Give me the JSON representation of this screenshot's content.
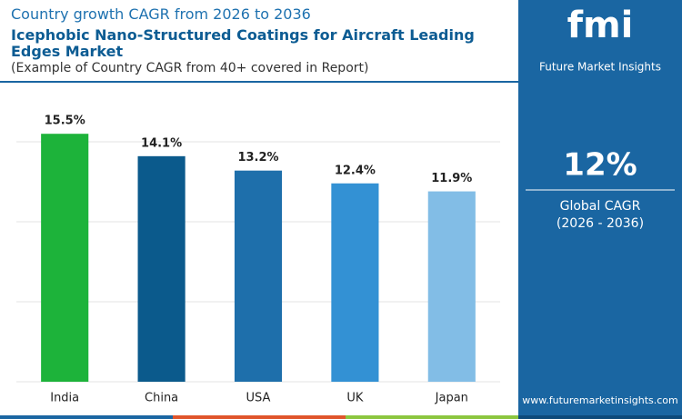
{
  "header": {
    "title": "Country growth CAGR from 2026 to 2036"
  },
  "logo": {
    "mark": "fmi",
    "name": "Future Market Insights"
  },
  "sidebar": {
    "value": "12%",
    "label": "Global CAGR",
    "period": "(2026 - 2036)"
  },
  "footer": {
    "url": "www.futuremarketinsights.com"
  },
  "chart_data": {
    "type": "bar",
    "title": "Icephobic Nano-Structured Coatings for Aircraft Leading Edges Market",
    "subtitle": "(Example of Country CAGR from 40+ covered in Report)",
    "categories": [
      "India",
      "China",
      "USA",
      "UK",
      "Japan"
    ],
    "values": [
      15.5,
      14.1,
      13.2,
      12.4,
      11.9
    ],
    "value_labels": [
      "15.5%",
      "14.1%",
      "13.2%",
      "12.4%",
      "11.9%"
    ],
    "colors": [
      "#1db33a",
      "#0b5a8c",
      "#1e6fab",
      "#3391d4",
      "#82bde6"
    ],
    "ylim": [
      0,
      16
    ],
    "yticks": [
      0,
      5,
      10,
      15
    ],
    "grid": true
  }
}
